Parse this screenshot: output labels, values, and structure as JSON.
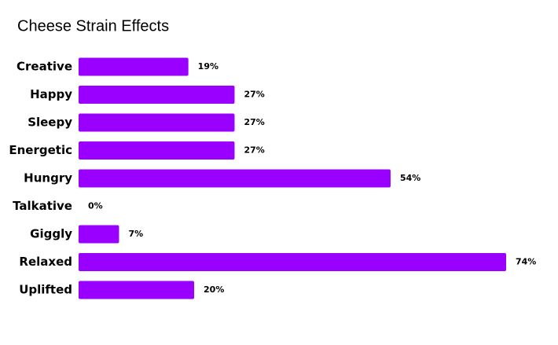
{
  "chart_data": {
    "type": "hbar",
    "title": "Cheese Strain Effects",
    "categories": [
      "Creative",
      "Happy",
      "Sleepy",
      "Energetic",
      "Hungry",
      "Talkative",
      "Giggly",
      "Relaxed",
      "Uplifted"
    ],
    "values": [
      19,
      27,
      27,
      27,
      54,
      0,
      7,
      74,
      20
    ],
    "value_labels": [
      "19%",
      "27%",
      "27%",
      "27%",
      "54%",
      "0%",
      "7%",
      "74%",
      "20%"
    ],
    "color": "#9900ff"
  }
}
